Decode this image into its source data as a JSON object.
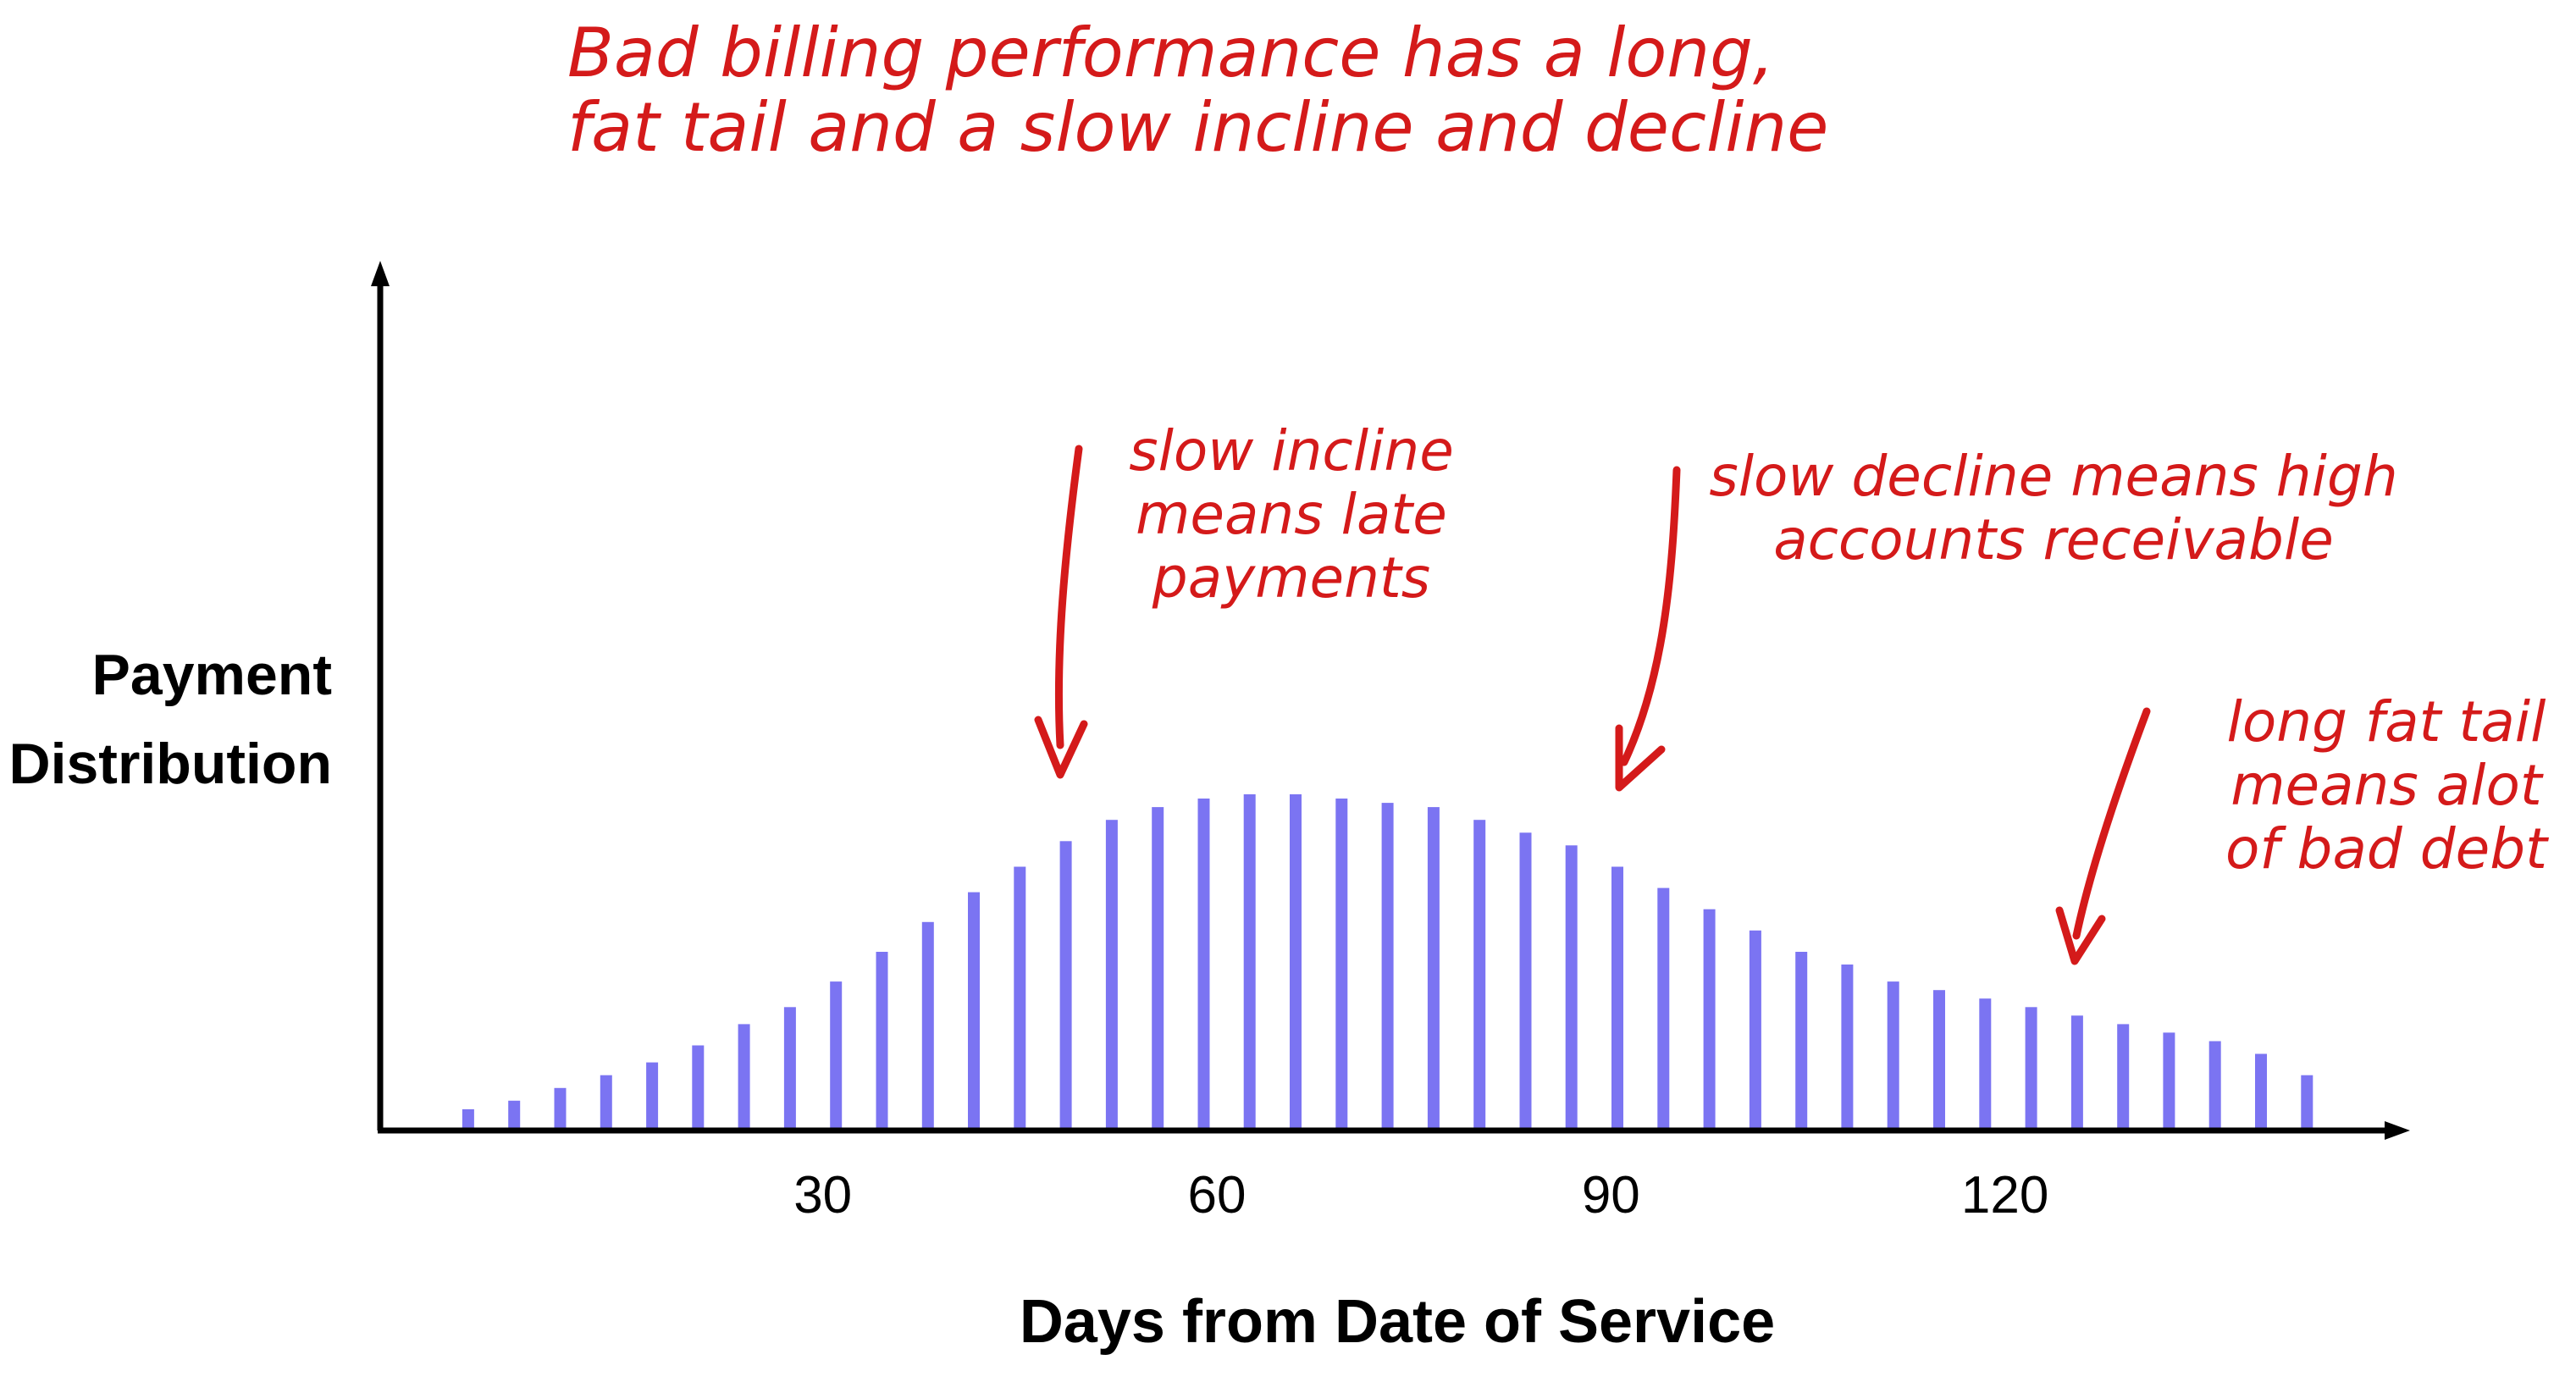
{
  "colors": {
    "bar": "#7b74f2",
    "annotation": "#d41a1a",
    "axis": "#000000"
  },
  "chart_data": {
    "type": "bar",
    "title": "Bad billing performance has a long, fat tail and a slow incline and decline",
    "title_lines": [
      "Bad billing performance has a long,",
      "fat tail and a slow incline and decline"
    ],
    "xlabel": "Days from Date of Service",
    "ylabel": "Payment Distribution",
    "ylabel_lines": [
      "Payment",
      "Distribution"
    ],
    "xlim": [
      -3.7,
      149.3
    ],
    "ylim": [
      0,
      100
    ],
    "x_ticks": [
      30,
      60,
      90,
      120
    ],
    "x": [
      3,
      6.5,
      10,
      13.5,
      17,
      20.5,
      24,
      27.5,
      31,
      34.5,
      38,
      41.5,
      45,
      48.5,
      52,
      55.5,
      59,
      62.5,
      66,
      69.5,
      73,
      76.5,
      80,
      83.5,
      87,
      90.5,
      94,
      97.5,
      101,
      104.5,
      108,
      111.5,
      115,
      118.5,
      122,
      125.5,
      129,
      132.5,
      136,
      139.5,
      143
    ],
    "values": [
      2.5,
      3.5,
      5,
      6.5,
      8,
      10,
      12.5,
      14.5,
      17.5,
      21,
      24.5,
      28,
      31,
      34,
      36.5,
      38,
      39,
      39.5,
      39.5,
      39,
      38.5,
      38,
      36.5,
      35,
      33.5,
      31,
      28.5,
      26,
      23.5,
      21,
      19.5,
      17.5,
      16.5,
      15.5,
      14.5,
      13.5,
      12.5,
      11.5,
      10.5,
      9,
      6.5
    ],
    "grid": false,
    "legend": "none",
    "annotations": [
      {
        "lines": [
          "slow incline",
          "means late",
          "payments"
        ]
      },
      {
        "lines": [
          "slow decline means high",
          "accounts receivable"
        ]
      },
      {
        "lines": [
          "long fat tail",
          "means alot",
          "of bad debt"
        ]
      }
    ]
  }
}
